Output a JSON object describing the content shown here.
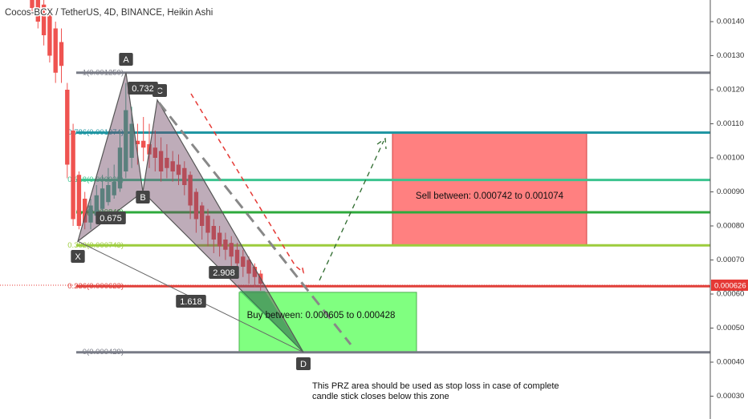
{
  "chart_data": {
    "type": "candlestick",
    "title": "Cocos-BCX / TetherUS, 4D, BINANCE, Heikin Ashi",
    "categories": [
      null,
      null,
      null,
      null,
      null,
      null,
      null,
      null,
      null,
      null,
      null,
      null,
      null,
      null,
      null,
      null,
      null,
      null,
      null,
      null,
      null,
      null,
      null,
      null,
      null,
      null,
      null,
      null,
      null,
      null,
      null,
      null,
      null,
      null,
      null,
      null,
      null,
      null,
      null,
      null
    ],
    "open": [
      0.0015,
      0.00148,
      0.00145,
      0.00142,
      0.00138,
      0.00134,
      0.0012,
      0.00108,
      0.00095,
      0.00088,
      0.00081,
      0.00083,
      0.00085,
      0.00087,
      0.00089,
      0.00091,
      0.00096,
      0.001,
      0.00105,
      0.00105,
      0.00104,
      0.00103,
      0.00102,
      0.001,
      0.00099,
      0.00098,
      0.00097,
      0.00095,
      0.0009,
      0.00086,
      0.00083,
      0.0008,
      0.00078,
      0.00076,
      0.00075,
      0.00073,
      0.00071,
      0.0007,
      0.00068,
      0.00066
    ],
    "close": [
      0.00144,
      0.0014,
      0.00136,
      0.0013,
      0.00125,
      0.00127,
      0.00098,
      0.00082,
      0.0008,
      0.00081,
      0.00086,
      0.00089,
      0.00091,
      0.00092,
      0.00093,
      0.00103,
      0.00114,
      0.0011,
      0.00104,
      0.00103,
      0.00101,
      0.001,
      0.00096,
      0.00097,
      0.00096,
      0.00095,
      0.00092,
      0.00086,
      0.00082,
      0.0008,
      0.00078,
      0.00076,
      0.00074,
      0.00073,
      0.00071,
      0.00069,
      0.00068,
      0.00066,
      0.00065,
      0.00063
    ],
    "high": [
      0.00152,
      0.0015,
      0.00147,
      0.00144,
      0.0014,
      0.00138,
      0.00122,
      0.0011,
      0.00096,
      0.0009,
      0.00088,
      0.00092,
      0.00095,
      0.00097,
      0.00098,
      0.00108,
      0.00122,
      0.00115,
      0.0011,
      0.00112,
      0.0011,
      0.00108,
      0.00106,
      0.00104,
      0.00102,
      0.00101,
      0.00099,
      0.00096,
      0.00091,
      0.00087,
      0.00085,
      0.00082,
      0.0008,
      0.00078,
      0.00077,
      0.00075,
      0.00073,
      0.00071,
      0.00069,
      0.00067
    ],
    "low": [
      0.00142,
      0.00138,
      0.00133,
      0.00128,
      0.00122,
      0.00122,
      0.00094,
      0.0008,
      0.00079,
      0.00079,
      0.00079,
      0.00081,
      0.00084,
      0.00086,
      0.00088,
      0.0009,
      0.00094,
      0.00097,
      0.00098,
      0.00099,
      0.00097,
      0.00096,
      0.00093,
      0.00094,
      0.00093,
      0.00092,
      0.00089,
      0.00082,
      0.00078,
      0.00076,
      0.00074,
      0.00072,
      0.00071,
      0.0007,
      0.00068,
      0.00066,
      0.00065,
      0.00063,
      0.00062,
      0.00061
    ],
    "up_color": "#4caf93",
    "down_color": "#ef5350",
    "ylim": [
      0.000233,
      0.0014635
    ],
    "yticks": [
      {
        "value": 0.0014,
        "label": "0.00140"
      },
      {
        "value": 0.0013,
        "label": "0.00130"
      },
      {
        "value": 0.0012,
        "label": "0.00120"
      },
      {
        "value": 0.0011,
        "label": "0.00110"
      },
      {
        "value": 0.001,
        "label": "0.00100"
      },
      {
        "value": 0.0009,
        "label": "0.00090"
      },
      {
        "value": 0.0008,
        "label": "0.00080"
      },
      {
        "value": 0.0007,
        "label": "0.00070"
      },
      {
        "value": 0.0006,
        "label": "0.00060"
      },
      {
        "value": 0.0005,
        "label": "0.00050"
      },
      {
        "value": 0.0004,
        "label": "0.00040"
      },
      {
        "value": 0.0003,
        "label": "0.00030"
      }
    ],
    "fib_levels": [
      {
        "value": 0.00125,
        "label": "1(0.001250)",
        "color": "#787b86"
      },
      {
        "value": 0.001074,
        "label": "0.786(0.001074)",
        "color": "#2196a3"
      },
      {
        "value": 0.000935,
        "label": "0.618(0.000935)",
        "color": "#3cc48f"
      },
      {
        "value": 0.00084,
        "label": "0.5(0.000840)",
        "color": "#2eaa3c"
      },
      {
        "value": 0.000743,
        "label": "0.382(0.000743)",
        "color": "#9ccc3c"
      },
      {
        "value": 0.000623,
        "label": "0.236(0.000623)",
        "color": "#e0403a"
      },
      {
        "value": 0.000429,
        "label": "0(0.000429)",
        "color": "#787b86"
      }
    ],
    "last_price": 0.000626,
    "pattern": {
      "points": [
        {
          "label": "X",
          "value": 0.000755
        },
        {
          "label": "A",
          "value": 0.00125
        },
        {
          "label": "B",
          "value": 0.0009
        },
        {
          "label": "C",
          "value": 0.00117
        },
        {
          "label": "D",
          "value": 0.000429
        }
      ],
      "ratios": [
        0.732,
        0.675,
        2.908,
        1.618
      ]
    },
    "zones": [
      {
        "label": "Sell between: 0.000742 to 0.001074",
        "low": 0.000742,
        "high": 0.001074,
        "color": "#ff8080"
      },
      {
        "label": "Buy between: 0.000605 to 0.000428",
        "low": 0.000428,
        "high": 0.000605,
        "color": "#80ff80"
      }
    ],
    "note": [
      "This PRZ area should be used as stop loss in case of complete",
      "candle stick closes below this zone"
    ]
  }
}
